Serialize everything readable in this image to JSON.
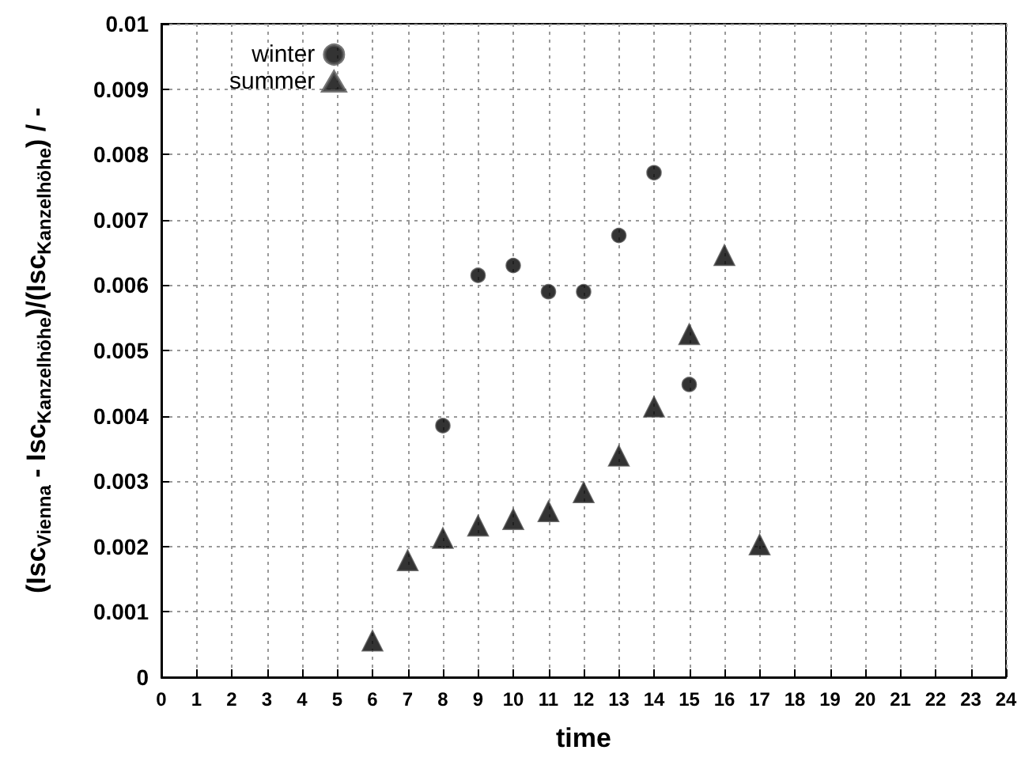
{
  "chart_data": {
    "type": "scatter",
    "xlabel": "time",
    "ylabel": "(Isc$_{Vienna}$ - Isc$_{Kanzelhöhe}$)/(Isc$_{Kanzelhöhe}$) / -",
    "x": [
      6,
      7,
      8,
      9,
      10,
      11,
      12,
      13,
      14,
      15,
      16,
      17
    ],
    "series": [
      {
        "name": "winter",
        "color": "#000000",
        "marker": "circle",
        "values": [
          null,
          null,
          0.00385,
          0.00615,
          0.0063,
          0.0059,
          0.0059,
          0.00676,
          0.00772,
          0.00448,
          null,
          null
        ]
      },
      {
        "name": "summer",
        "color": "#000000",
        "marker": "triangle",
        "values": [
          0.00056,
          0.00179,
          0.00213,
          0.00232,
          0.00242,
          0.00254,
          0.00283,
          0.00339,
          0.00414,
          0.00525,
          0.00646,
          0.00203
        ]
      }
    ],
    "xlim": [
      0,
      24
    ],
    "xticks": [
      0,
      1,
      2,
      3,
      4,
      5,
      6,
      7,
      8,
      9,
      10,
      11,
      12,
      13,
      14,
      15,
      16,
      17,
      18,
      19,
      20,
      21,
      22,
      23,
      24
    ],
    "ylim": [
      0,
      0.01
    ],
    "yticks": [
      0,
      0.001,
      0.002,
      0.003,
      0.004,
      0.005,
      0.006,
      0.007,
      0.008,
      0.009,
      0.01
    ],
    "grid": true,
    "legend": "top left"
  }
}
